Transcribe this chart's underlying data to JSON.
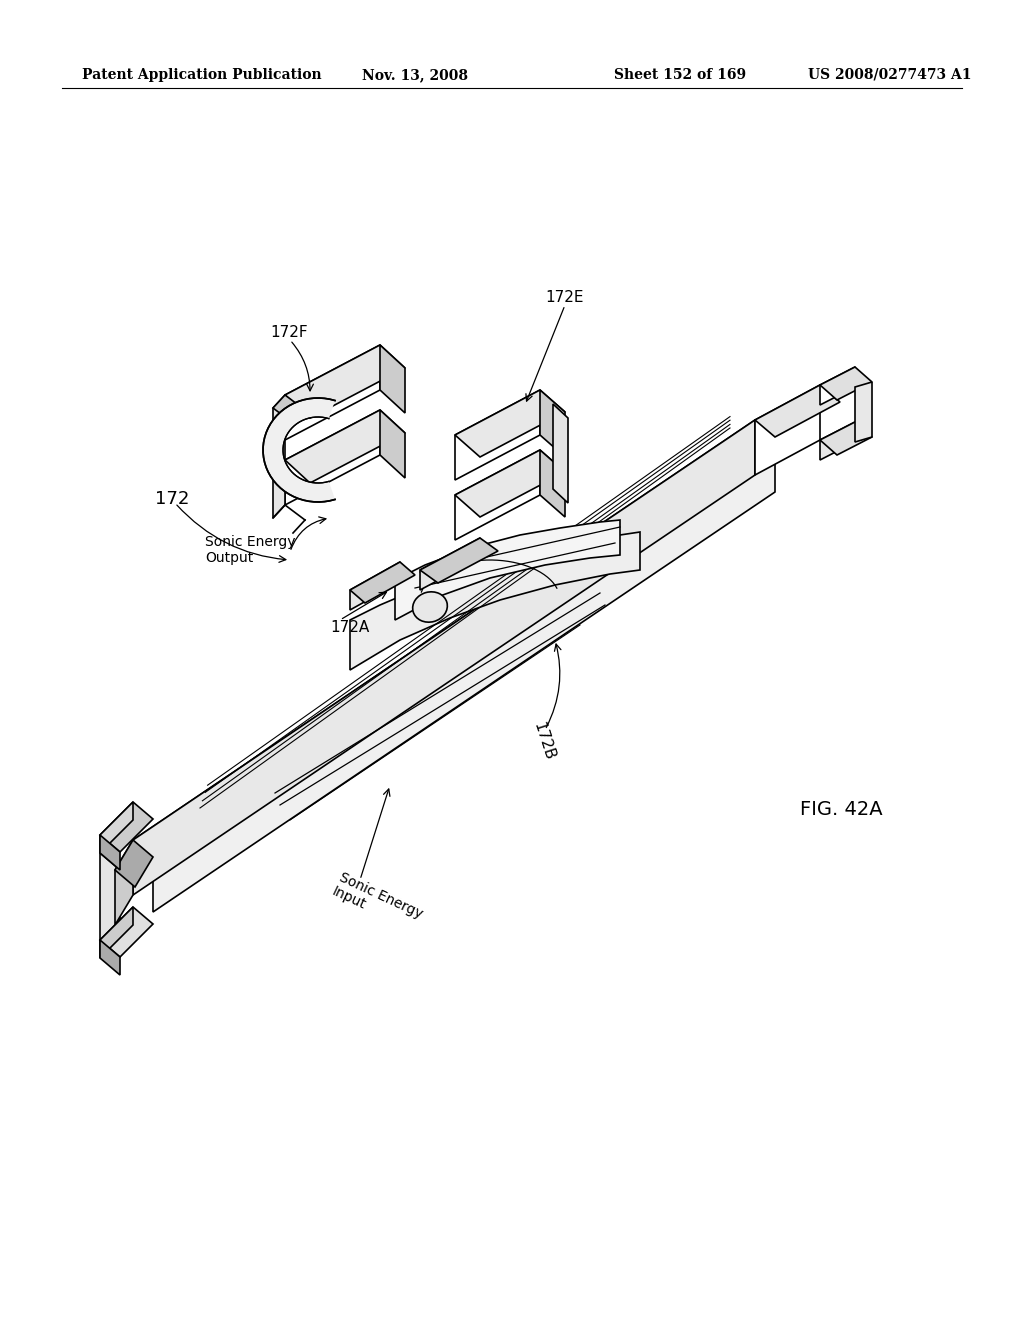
{
  "background_color": "#ffffff",
  "header_text": "Patent Application Publication",
  "header_date": "Nov. 13, 2008",
  "header_sheet": "Sheet 152 of 169",
  "header_patent": "US 2008/0277473 A1",
  "figure_label": "FIG. 42A",
  "black": "#000000",
  "white": "#ffffff",
  "light_gray": "#e8e8e8",
  "mid_gray": "#cccccc",
  "dark_gray": "#aaaaaa"
}
